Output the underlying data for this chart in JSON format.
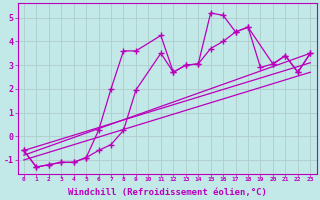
{
  "background_color": "#c2e8e8",
  "grid_color": "#b0cccc",
  "line_color": "#bb00bb",
  "spine_color": "#9900aa",
  "xlabel": "Windchill (Refroidissement éolien,°C)",
  "xlabel_fontsize": 6.5,
  "ylabel_ticks": [
    -1,
    0,
    1,
    2,
    3,
    4,
    5
  ],
  "xlim": [
    -0.5,
    23.5
  ],
  "ylim": [
    -1.6,
    5.6
  ],
  "xtick_labels": [
    "0",
    "1",
    "2",
    "3",
    "4",
    "5",
    "6",
    "7",
    "8",
    "9",
    "10",
    "11",
    "12",
    "13",
    "14",
    "15",
    "16",
    "17",
    "18",
    "19",
    "20",
    "21",
    "22",
    "23"
  ],
  "line1_x": [
    0,
    1,
    2,
    3,
    4,
    5,
    6,
    7,
    8,
    9,
    11,
    12,
    13,
    14,
    15,
    16,
    17,
    18,
    19,
    20,
    21,
    22,
    23
  ],
  "line1_y": [
    -0.6,
    -1.3,
    -1.2,
    -1.1,
    -1.1,
    -0.9,
    0.25,
    2.0,
    3.6,
    3.6,
    4.25,
    2.7,
    3.0,
    3.05,
    5.2,
    5.1,
    4.4,
    4.6,
    2.9,
    3.05,
    3.4,
    2.7,
    3.5
  ],
  "line2_x": [
    0,
    1,
    2,
    3,
    4,
    5,
    6,
    7,
    8,
    9,
    11,
    12,
    13,
    14,
    15,
    16,
    17,
    18,
    20,
    21,
    22,
    23
  ],
  "line2_y": [
    -0.6,
    -1.3,
    -1.2,
    -1.1,
    -1.1,
    -0.9,
    -0.6,
    -0.35,
    0.25,
    1.95,
    3.5,
    2.7,
    3.0,
    3.05,
    3.7,
    4.0,
    4.4,
    4.6,
    3.05,
    3.4,
    2.7,
    3.5
  ],
  "trend1_x": [
    0,
    23
  ],
  "trend1_y": [
    -0.8,
    3.5
  ],
  "trend2_x": [
    0,
    23
  ],
  "trend2_y": [
    -1.0,
    2.7
  ],
  "trend3_x": [
    0,
    23
  ],
  "trend3_y": [
    -0.6,
    3.1
  ],
  "marker_style": "+",
  "marker_size": 4,
  "line_width": 0.9
}
